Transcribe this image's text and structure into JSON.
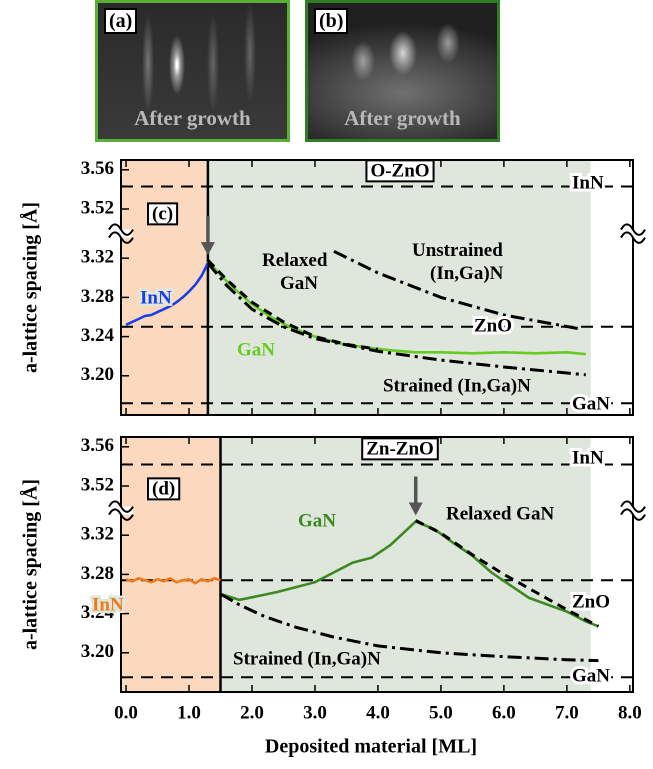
{
  "images": [
    {
      "label": "(a)",
      "caption": "After growth"
    },
    {
      "label": "(b)",
      "caption": "After growth"
    }
  ],
  "chart_data": [
    {
      "type": "line",
      "panel_label": "(c)",
      "title": "O-ZnO",
      "ylabel": "a-lattice spacing [Å]",
      "xlim": [
        -0.08,
        8.05
      ],
      "ylim": [
        3.16,
        3.57
      ],
      "y_break": [
        3.34,
        3.5
      ],
      "yticks": [
        {
          "value": 3.2,
          "label": "3.20"
        },
        3.24,
        3.28,
        3.32,
        3.52,
        3.56
      ],
      "regions": [
        {
          "from": -0.08,
          "to": 1.3,
          "color": "#fbd9bf"
        },
        {
          "from": 1.3,
          "to": 7.38,
          "color": "#dfe6dc"
        }
      ],
      "reference_lines": [
        {
          "name": "InN",
          "value": 3.543
        },
        {
          "name": "ZnO",
          "value": 3.25
        },
        {
          "name": "GaN",
          "value": 3.172
        }
      ],
      "series": [
        {
          "name": "InN",
          "color": "#1a3fe6",
          "style": "solid",
          "x": [
            0,
            0.1,
            0.2,
            0.3,
            0.4,
            0.5,
            0.6,
            0.7,
            0.8,
            0.9,
            1.0,
            1.1,
            1.2,
            1.3
          ],
          "values": [
            3.252,
            3.255,
            3.258,
            3.261,
            3.262,
            3.265,
            3.268,
            3.271,
            3.275,
            3.28,
            3.286,
            3.293,
            3.302,
            3.315
          ]
        },
        {
          "name": "GaN",
          "color": "#66cc22",
          "style": "solid",
          "x": [
            1.3,
            1.5,
            1.7,
            2.0,
            2.3,
            2.6,
            3.0,
            3.4,
            3.8,
            4.2,
            4.6,
            5.0,
            5.5,
            6.0,
            6.5,
            7.0,
            7.3
          ],
          "values": [
            3.317,
            3.303,
            3.29,
            3.273,
            3.26,
            3.25,
            3.24,
            3.233,
            3.229,
            3.226,
            3.224,
            3.224,
            3.223,
            3.224,
            3.223,
            3.224,
            3.222
          ]
        },
        {
          "name": "Relaxed GaN",
          "color": "#000000",
          "style": "dashed",
          "x": [
            1.3,
            1.6,
            2.0,
            2.5,
            3.0,
            3.5,
            4.0
          ],
          "values": [
            3.318,
            3.298,
            3.275,
            3.255,
            3.24,
            3.232,
            3.227
          ]
        },
        {
          "name": "Strained (In,Ga)N",
          "color": "#000000",
          "style": "dashdot",
          "x": [
            1.3,
            1.6,
            2.0,
            2.5,
            3.0,
            4.0,
            5.0,
            6.0,
            7.3
          ],
          "values": [
            3.315,
            3.292,
            3.268,
            3.25,
            3.238,
            3.225,
            3.216,
            3.209,
            3.201
          ]
        },
        {
          "name": "Unstrained (In,Ga)N",
          "color": "#000000",
          "style": "dashdot",
          "x": [
            3.3,
            4.0,
            5.0,
            6.0,
            7.2
          ],
          "values": [
            3.327,
            3.305,
            3.28,
            3.262,
            3.248
          ]
        }
      ]
    },
    {
      "type": "line",
      "panel_label": "(d)",
      "title": "Zn-ZnO",
      "ylabel": "a-lattice spacing [Å]",
      "xlabel": "Deposited material [ML]",
      "xlim": [
        -0.08,
        8.05
      ],
      "ylim": [
        3.16,
        3.57
      ],
      "y_break": [
        3.34,
        3.5
      ],
      "xticks": [
        {
          "value": 0,
          "label": "0.0"
        },
        {
          "value": 1,
          "label": "1.0"
        },
        {
          "value": 2,
          "label": "2.0"
        },
        {
          "value": 3,
          "label": "3.0"
        },
        {
          "value": 4,
          "label": "4.0"
        },
        {
          "value": 5,
          "label": "5.0"
        },
        {
          "value": 6,
          "label": "6.0"
        },
        {
          "value": 7,
          "label": "7.0"
        },
        {
          "value": 8,
          "label": "8.0"
        }
      ],
      "yticks": [
        {
          "value": 3.2,
          "label": "3.20"
        },
        3.24,
        3.28,
        3.32,
        3.52,
        3.56
      ],
      "regions": [
        {
          "from": -0.08,
          "to": 1.5,
          "color": "#fbd9bf"
        },
        {
          "from": 1.5,
          "to": 7.38,
          "color": "#dfe6dc"
        }
      ],
      "reference_lines": [
        {
          "name": "InN",
          "value": 3.542
        },
        {
          "name": "ZnO",
          "value": 3.274
        },
        {
          "name": "GaN",
          "value": 3.175
        }
      ],
      "series": [
        {
          "name": "InN",
          "color": "#f07a1a",
          "style": "solid",
          "x": [
            0,
            0.1,
            0.2,
            0.3,
            0.4,
            0.5,
            0.6,
            0.7,
            0.8,
            0.9,
            1.0,
            1.1,
            1.2,
            1.3,
            1.4,
            1.5
          ],
          "values": [
            3.275,
            3.273,
            3.276,
            3.274,
            3.272,
            3.275,
            3.273,
            3.276,
            3.272,
            3.274,
            3.275,
            3.271,
            3.275,
            3.273,
            3.276,
            3.274
          ]
        },
        {
          "name": "GaN",
          "color": "#3a8a1f",
          "style": "solid",
          "x": [
            1.5,
            1.8,
            2.1,
            2.4,
            2.7,
            3.0,
            3.3,
            3.6,
            3.9,
            4.2,
            4.6,
            4.9,
            5.2,
            5.5,
            5.8,
            6.1,
            6.4,
            6.7,
            7.0,
            7.3,
            7.5
          ],
          "values": [
            3.26,
            3.254,
            3.258,
            3.262,
            3.267,
            3.272,
            3.282,
            3.292,
            3.297,
            3.31,
            3.334,
            3.326,
            3.312,
            3.299,
            3.282,
            3.269,
            3.256,
            3.249,
            3.242,
            3.232,
            3.227
          ]
        },
        {
          "name": "Relaxed GaN",
          "color": "#000000",
          "style": "dashed",
          "x": [
            4.6,
            5.0,
            5.5,
            6.0,
            6.5,
            7.0,
            7.5
          ],
          "values": [
            3.335,
            3.322,
            3.3,
            3.28,
            3.262,
            3.244,
            3.227
          ]
        },
        {
          "name": "Strained (In,Ga)N",
          "color": "#000000",
          "style": "dashdot",
          "x": [
            1.5,
            1.8,
            2.2,
            2.7,
            3.3,
            4.0,
            5.0,
            6.0,
            7.0,
            7.5
          ],
          "values": [
            3.26,
            3.249,
            3.237,
            3.226,
            3.216,
            3.207,
            3.2,
            3.196,
            3.193,
            3.192
          ]
        }
      ]
    }
  ]
}
